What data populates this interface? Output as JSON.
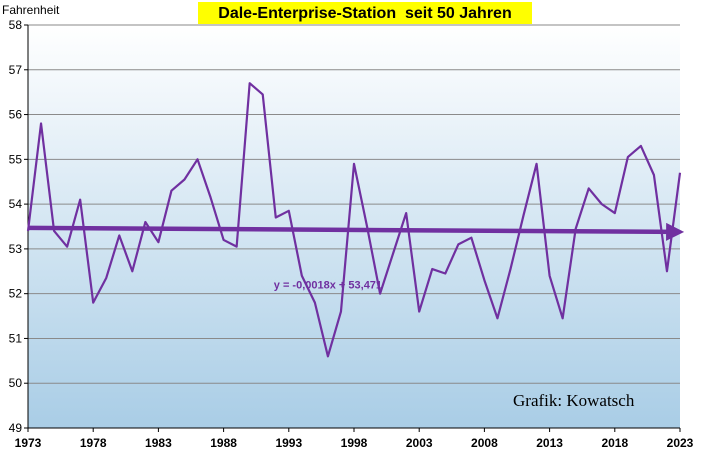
{
  "chart_data": {
    "type": "line",
    "title": "Dale-Enterprise-Station  seit 50 Jahren",
    "title_bg": "#ffff00",
    "ylabel": "Fahrenheit",
    "xlabel": "",
    "ylim": [
      49,
      58
    ],
    "xlim": [
      1973,
      2023
    ],
    "yticks": [
      49,
      50,
      51,
      52,
      53,
      54,
      55,
      56,
      57,
      58
    ],
    "xticks": [
      1973,
      1978,
      1983,
      1988,
      1993,
      1998,
      2003,
      2008,
      2013,
      2018,
      2023
    ],
    "grid": "horizontal",
    "background_gradient": [
      "#ffffff",
      "#a9cde6"
    ],
    "series": [
      {
        "color": "#7030a0",
        "x": [
          1973,
          1974,
          1975,
          1976,
          1977,
          1978,
          1979,
          1980,
          1981,
          1982,
          1983,
          1984,
          1985,
          1986,
          1987,
          1988,
          1989,
          1990,
          1991,
          1992,
          1993,
          1994,
          1995,
          1996,
          1997,
          1998,
          1999,
          2000,
          2001,
          2002,
          2003,
          2004,
          2005,
          2006,
          2007,
          2008,
          2009,
          2010,
          2011,
          2012,
          2013,
          2014,
          2015,
          2016,
          2017,
          2018,
          2019,
          2020,
          2021,
          2022,
          2023
        ],
        "values": [
          53.4,
          55.8,
          53.4,
          53.05,
          54.1,
          51.8,
          52.35,
          53.3,
          52.5,
          53.6,
          53.15,
          54.3,
          54.55,
          55.0,
          54.15,
          53.2,
          53.05,
          56.7,
          56.45,
          53.7,
          53.85,
          52.4,
          51.8,
          50.6,
          51.6,
          54.9,
          53.5,
          52.0,
          52.9,
          53.8,
          51.6,
          52.55,
          52.45,
          53.1,
          53.25,
          52.3,
          51.45,
          52.55,
          53.75,
          54.9,
          52.4,
          51.45,
          53.45,
          54.35,
          54.0,
          53.8,
          55.05,
          55.3,
          54.65,
          52.5,
          54.7
        ]
      }
    ],
    "trendline": {
      "slope": -0.0018,
      "intercept": 53.471,
      "label": "y = -0,0018x + 53,471",
      "label_x": 1996,
      "label_y": 52.2
    },
    "annotation": "Grafik: Kowatsch"
  }
}
